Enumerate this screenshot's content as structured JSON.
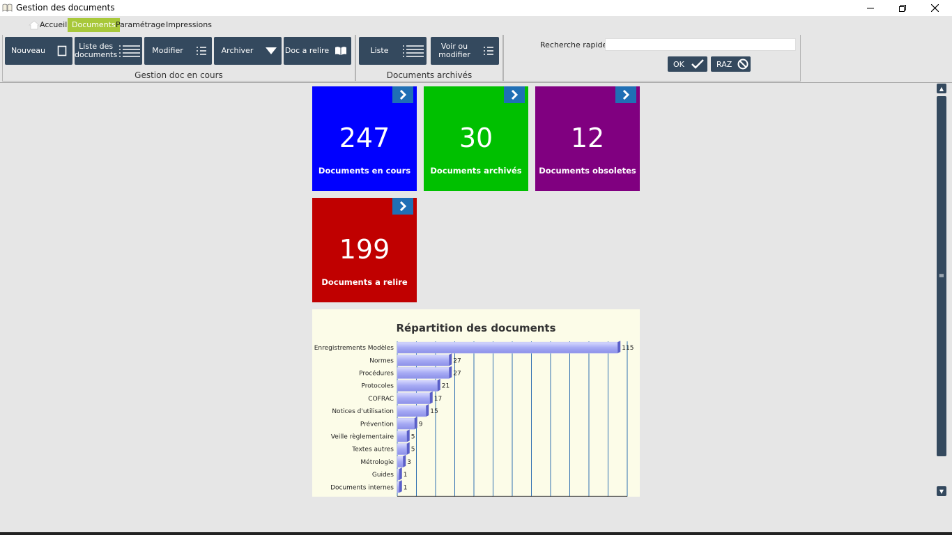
{
  "window": {
    "title": "Gestion des documents"
  },
  "menu": [
    {
      "label": "Accueil",
      "active": false
    },
    {
      "label": "Documents",
      "active": true
    },
    {
      "label": "Paramétrage",
      "active": false
    },
    {
      "label": "Impressions",
      "active": false
    }
  ],
  "ribbon": {
    "group_current": {
      "label": "Gestion doc en cours",
      "buttons": {
        "new": "Nouveau",
        "list_line1": "Liste des",
        "list_line2": "documents",
        "edit": "Modifier",
        "archive": "Archiver",
        "reread": "Doc a relire"
      }
    },
    "group_archived": {
      "label": "Documents archivés",
      "buttons": {
        "list": "Liste",
        "view_line1": "Voir ou",
        "view_line2": "modifier"
      }
    },
    "search": {
      "label": "Recherche rapide",
      "value": "",
      "ok": "OK",
      "reset": "RAZ"
    }
  },
  "tiles": [
    {
      "count": "247",
      "label": "Documents en cours",
      "color": "#0000ff"
    },
    {
      "count": "30",
      "label": "Documents archivés",
      "color": "#00c000"
    },
    {
      "count": "12",
      "label": "Documents obsoletes",
      "color": "#800080"
    },
    {
      "count": "199",
      "label": "Documents a relire",
      "color": "#c00000"
    }
  ],
  "chart_data": {
    "type": "bar",
    "orientation": "horizontal",
    "title": "Répartition des documents",
    "categories": [
      "Enregistrements Modèles",
      "Normes",
      "Procédures",
      "Protocoles",
      "COFRAC",
      "Notices d'utilisation",
      "Prévention",
      "Veille règlementaire",
      "Textes autres",
      "Métrologie",
      "Guides",
      "Documents internes"
    ],
    "values": [
      115,
      27,
      27,
      21,
      17,
      15,
      9,
      5,
      5,
      3,
      1,
      1
    ],
    "xlim": [
      0,
      120
    ],
    "grid": true,
    "bar_color": "#9fa3f0"
  }
}
